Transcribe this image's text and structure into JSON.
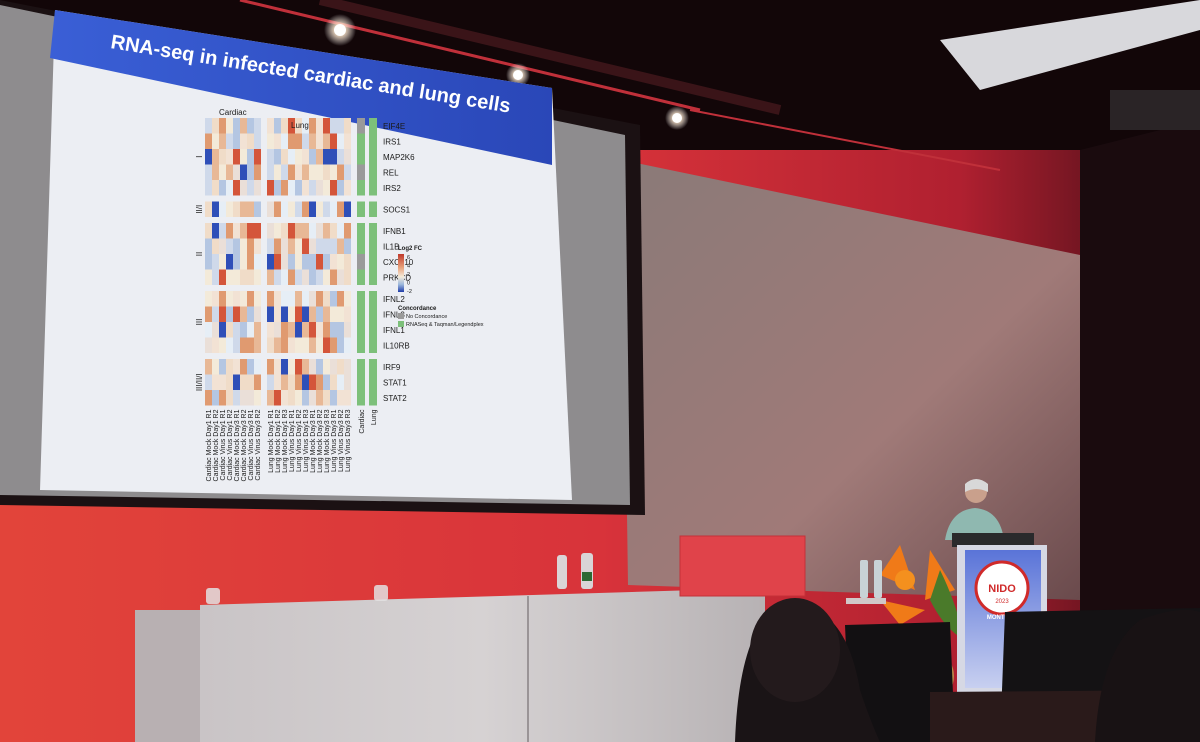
{
  "slide": {
    "title": "RNA-seq in infected cardiac and lung cells",
    "group_labels": [
      "Cardiac",
      "Lung"
    ],
    "row_groups": [
      "I",
      "I/II",
      "II",
      "III",
      "I/II/III"
    ],
    "genes": [
      "EIF4E",
      "IRS1",
      "MAP2K6",
      "REL",
      "IRS2",
      "SOCS1",
      "IFNB1",
      "IL1B",
      "CXCL10",
      "PRKCD",
      "IFNL2",
      "IFNL3",
      "IFNL1",
      "IL10RB",
      "IRF9",
      "STAT1",
      "STAT2"
    ],
    "columns": [
      "Cardiac Mock Day1 R1",
      "Cardiac Mock Day1 R2",
      "Cardiac Virus Day1 R1",
      "Cardiac Virus Day1 R2",
      "Cardiac Mock Day3 R1",
      "Cardiac Mock Day3 R2",
      "Cardiac Virus Day3 R1",
      "Cardiac Virus Day3 R2",
      "Lung Mock Day1 R1",
      "Lung Mock Day1 R2",
      "Lung Mock Day1 R3",
      "Lung Virus Day1 R1",
      "Lung Virus Day1 R2",
      "Lung Virus Day1 R3",
      "Lung Mock Day3 R1",
      "Lung Mock Day3 R2",
      "Lung Mock Day3 R3",
      "Lung Virus Day3 R1",
      "Lung Virus Day3 R2",
      "Lung Virus Day3 R3"
    ],
    "annotation_columns": [
      "Cardiac",
      "Lung"
    ],
    "legend": {
      "title": "Log2 FC",
      "ticks": [
        "6",
        "4",
        "2",
        "0",
        "-2"
      ],
      "colors": [
        "#c0392b",
        "#e8a07a",
        "#f3ead9",
        "#9db8dc",
        "#1f3ca8"
      ]
    },
    "concordance": {
      "title": "Concordance",
      "items": [
        {
          "label": "No Concordance",
          "color": "#9a9a9a"
        },
        {
          "label": "RNASeq & Taqman/Legendplex",
          "color": "#7dc07a"
        }
      ]
    }
  },
  "podium": {
    "logo_text": "NIDO",
    "logo_subtext": "MONTREUX",
    "logo_year": "2023"
  }
}
